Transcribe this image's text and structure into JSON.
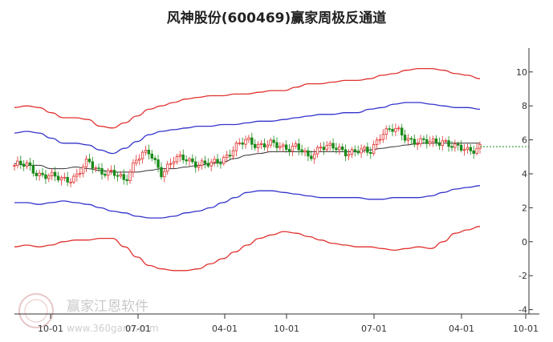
{
  "chart_data": {
    "type": "line",
    "title": "风神股份(600469)赢家周极反通道",
    "x_tick_labels": [
      "10-01",
      "07-01",
      "04-01",
      "10-01",
      "07-01",
      "04-01",
      "10-01"
    ],
    "y_ticks": [
      10,
      8,
      6,
      4,
      2,
      0,
      -2,
      -4
    ],
    "ylim": [
      -4,
      11
    ],
    "grid": false,
    "colors": {
      "upper_band": "#e0312e",
      "middle_band": "#3333cc",
      "moving_average": "#333333",
      "candle_up": "#e0312e",
      "candle_down": "#1a8a1a",
      "price_line": "#1a8a1a"
    },
    "series": [
      {
        "key": "red_upper",
        "values": [
          7.9,
          8.0,
          7.9,
          7.6,
          7.3,
          7.3,
          7.2,
          6.8,
          6.7,
          7.0,
          7.4,
          7.8,
          8.0,
          8.2,
          8.4,
          8.5,
          8.6,
          8.6,
          8.7,
          8.7,
          8.8,
          8.9,
          8.9,
          9.1,
          9.3,
          9.3,
          9.4,
          9.5,
          9.5,
          9.6,
          9.8,
          9.9,
          10.1,
          10.2,
          10.2,
          10.1,
          9.9,
          9.8,
          9.6
        ]
      },
      {
        "key": "blue_upper",
        "values": [
          6.4,
          6.5,
          6.4,
          6.1,
          5.8,
          5.8,
          5.7,
          5.4,
          5.2,
          5.5,
          5.9,
          6.3,
          6.5,
          6.6,
          6.7,
          6.8,
          6.8,
          6.9,
          6.9,
          7.0,
          7.1,
          7.1,
          7.2,
          7.3,
          7.4,
          7.5,
          7.5,
          7.6,
          7.6,
          7.8,
          7.9,
          8.1,
          8.2,
          8.2,
          8.1,
          8.0,
          7.9,
          7.9,
          7.8
        ]
      },
      {
        "key": "blue_lower",
        "values": [
          2.3,
          2.3,
          2.2,
          2.3,
          2.4,
          2.3,
          2.2,
          2.0,
          1.8,
          1.7,
          1.5,
          1.4,
          1.4,
          1.5,
          1.7,
          1.8,
          2.0,
          2.3,
          2.6,
          2.9,
          3.0,
          3.0,
          2.9,
          2.8,
          2.7,
          2.6,
          2.6,
          2.6,
          2.6,
          2.5,
          2.5,
          2.6,
          2.6,
          2.6,
          2.7,
          2.9,
          3.1,
          3.2,
          3.3
        ]
      },
      {
        "key": "red_lower",
        "values": [
          -0.3,
          -0.2,
          -0.3,
          -0.2,
          0.0,
          0.1,
          0.1,
          0.2,
          0.2,
          -0.3,
          -0.9,
          -1.4,
          -1.6,
          -1.7,
          -1.7,
          -1.6,
          -1.3,
          -1.0,
          -0.6,
          -0.2,
          0.2,
          0.4,
          0.6,
          0.5,
          0.3,
          0.1,
          -0.1,
          -0.2,
          -0.3,
          -0.3,
          -0.4,
          -0.5,
          -0.4,
          -0.3,
          -0.4,
          0.0,
          0.5,
          0.7,
          0.9
        ]
      },
      {
        "key": "moving_average",
        "values": [
          4.6,
          4.5,
          4.5,
          4.3,
          4.3,
          4.4,
          4.3,
          4.2,
          4.1,
          4.1,
          4.1,
          4.2,
          4.3,
          4.3,
          4.4,
          4.5,
          4.6,
          4.7,
          4.9,
          5.1,
          5.2,
          5.3,
          5.3,
          5.3,
          5.3,
          5.3,
          5.3,
          5.3,
          5.3,
          5.4,
          5.5,
          5.6,
          5.7,
          5.8,
          5.8,
          5.8,
          5.8,
          5.8,
          5.8
        ]
      },
      {
        "key": "close_price",
        "values": [
          4.5,
          4.5,
          4.0,
          3.8,
          3.7,
          3.8,
          4.7,
          4.2,
          4.0,
          3.6,
          5.0,
          5.2,
          4.1,
          4.8,
          4.9,
          4.6,
          4.5,
          4.9,
          5.5,
          6.0,
          5.7,
          5.7,
          5.6,
          5.6,
          4.9,
          5.7,
          5.5,
          5.3,
          5.4,
          5.2,
          6.5,
          6.6,
          6.1,
          5.9,
          5.8,
          6.0,
          5.5,
          5.4,
          5.6
        ]
      }
    ],
    "last_value": 5.6
  },
  "watermark": {
    "brand": "赢家江恩软件",
    "url": "www.360gann.com"
  }
}
